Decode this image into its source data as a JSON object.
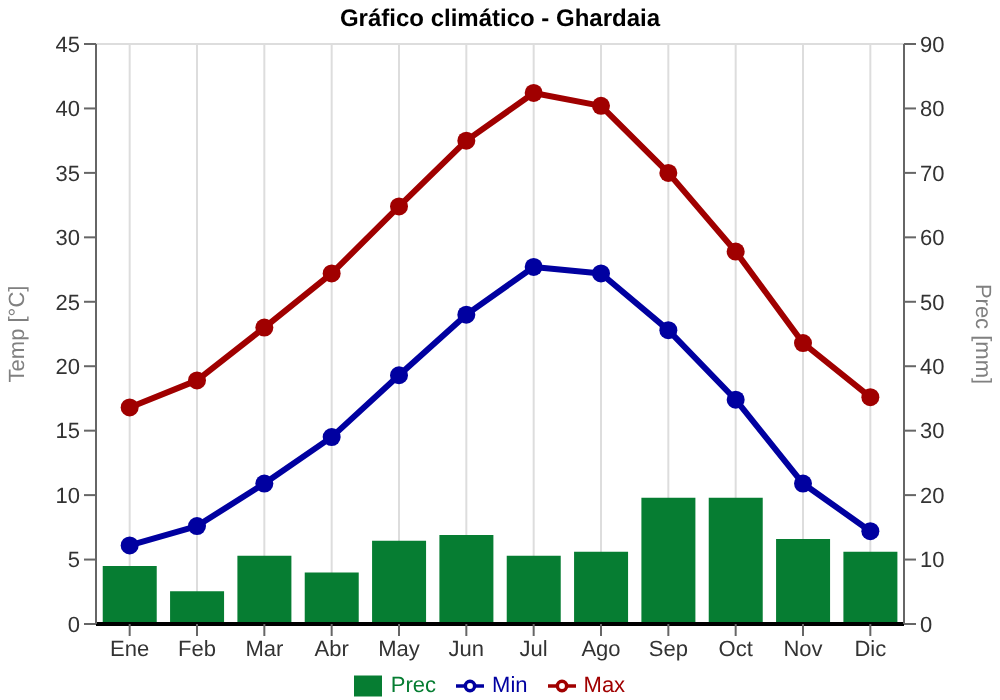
{
  "chart_data": {
    "type": "line",
    "title": "Gráfico climático - Ghardaia",
    "ylabel": "Temp [°C]",
    "y2label": "Prec [mm]",
    "categories": [
      "Ene",
      "Feb",
      "Mar",
      "Abr",
      "May",
      "Jun",
      "Jul",
      "Ago",
      "Sep",
      "Oct",
      "Nov",
      "Dic"
    ],
    "series": [
      {
        "name": "Prec",
        "type": "bar",
        "axis": "y2",
        "color": "#067d32",
        "values": [
          9.0,
          5.1,
          10.6,
          8.0,
          12.9,
          13.8,
          10.6,
          11.2,
          19.6,
          19.6,
          13.2,
          11.2
        ]
      },
      {
        "name": "Min",
        "color": "#0000a0",
        "values": [
          6.1,
          7.6,
          10.9,
          14.5,
          19.3,
          24.0,
          27.7,
          27.2,
          22.8,
          17.4,
          10.9,
          7.2
        ]
      },
      {
        "name": "Max",
        "color": "#a00000",
        "values": [
          16.8,
          18.9,
          23.0,
          27.2,
          32.4,
          37.5,
          41.2,
          40.2,
          35.0,
          28.9,
          21.8,
          17.6
        ]
      }
    ],
    "ylim": [
      0,
      45
    ],
    "yticks": [
      0,
      5,
      10,
      15,
      20,
      25,
      30,
      35,
      40,
      45
    ],
    "y2lim": [
      0,
      90
    ],
    "y2ticks": [
      0,
      10,
      20,
      30,
      40,
      50,
      60,
      70,
      80,
      90
    ],
    "grid": true,
    "legend": "bottom",
    "marker": "circle"
  }
}
